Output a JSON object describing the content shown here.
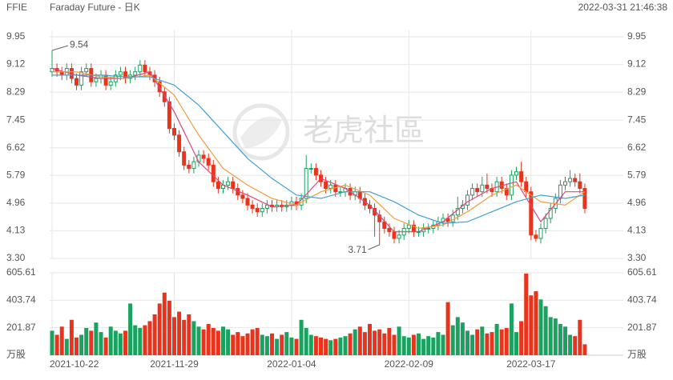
{
  "chart_data": {
    "type": "candlestick",
    "symbol": "FFIE",
    "title": "Faraday Future - 日K",
    "timestamp": "2022-03-31 21:46:38",
    "watermark": "老虎社區",
    "categories": [
      "2021-10-22",
      null,
      null,
      null,
      null,
      null,
      null,
      null,
      null,
      null,
      null,
      null,
      null,
      null,
      null,
      null,
      null,
      null,
      null,
      null,
      null,
      null,
      null,
      null,
      null,
      "2021-11-29",
      null,
      null,
      null,
      null,
      null,
      null,
      null,
      null,
      null,
      null,
      null,
      null,
      null,
      null,
      null,
      null,
      null,
      null,
      null,
      null,
      null,
      null,
      null,
      "2022-01-04",
      null,
      null,
      null,
      null,
      null,
      null,
      null,
      null,
      null,
      null,
      null,
      null,
      null,
      null,
      null,
      null,
      null,
      null,
      null,
      null,
      null,
      null,
      null,
      "2022-02-09",
      null,
      null,
      null,
      null,
      null,
      null,
      null,
      null,
      null,
      null,
      null,
      null,
      null,
      null,
      null,
      null,
      null,
      null,
      null,
      null,
      null,
      null,
      null,
      null,
      "2022-03-17",
      null,
      null,
      null,
      null,
      null,
      null,
      null,
      null,
      null,
      null,
      null
    ],
    "open": [
      8.9,
      9.0,
      8.9,
      8.8,
      9.0,
      8.7,
      8.5,
      8.9,
      9.0,
      8.6,
      8.7,
      8.8,
      8.5,
      8.6,
      8.8,
      8.9,
      8.7,
      8.8,
      8.9,
      9.1,
      8.9,
      8.8,
      8.6,
      8.3,
      8.0,
      7.2,
      7.0,
      6.5,
      6.1,
      6.0,
      6.2,
      6.4,
      6.3,
      6.1,
      5.6,
      5.4,
      5.5,
      5.6,
      5.4,
      5.2,
      5.1,
      4.9,
      4.8,
      4.7,
      4.8,
      4.9,
      4.85,
      4.9,
      4.85,
      4.9,
      5.0,
      4.9,
      5.1,
      6.0,
      6.0,
      5.8,
      5.6,
      5.4,
      5.5,
      5.3,
      5.3,
      5.4,
      5.2,
      5.3,
      5.1,
      4.9,
      4.8,
      4.6,
      4.4,
      4.2,
      4.1,
      3.9,
      4.0,
      4.2,
      4.3,
      4.1,
      4.1,
      4.2,
      4.2,
      4.3,
      4.4,
      4.5,
      4.4,
      4.6,
      4.8,
      4.9,
      5.2,
      5.4,
      5.3,
      5.5,
      5.4,
      5.3,
      5.6,
      5.4,
      5.2,
      5.8,
      5.9,
      5.6,
      5.3,
      4.0,
      3.9,
      4.2,
      4.5,
      4.8,
      5.1,
      5.5,
      5.6,
      5.7,
      5.6,
      5.4
    ],
    "high": [
      9.54,
      9.15,
      9.05,
      9.15,
      9.15,
      8.85,
      9.05,
      9.15,
      9.15,
      8.85,
      8.95,
      8.95,
      8.75,
      8.95,
      9.05,
      9.05,
      8.95,
      9.05,
      9.25,
      9.25,
      9.05,
      8.95,
      8.75,
      8.45,
      8.15,
      7.35,
      7.15,
      6.65,
      6.25,
      6.35,
      6.55,
      6.55,
      6.45,
      6.25,
      5.75,
      5.65,
      5.75,
      5.75,
      5.55,
      5.35,
      5.25,
      5.05,
      4.95,
      4.95,
      5.05,
      5.05,
      5.05,
      5.05,
      5.05,
      5.15,
      5.15,
      5.25,
      6.4,
      6.15,
      6.15,
      5.95,
      5.75,
      5.65,
      5.65,
      5.45,
      5.55,
      5.55,
      5.45,
      5.45,
      5.25,
      5.05,
      4.95,
      4.75,
      4.55,
      4.35,
      4.25,
      4.15,
      4.35,
      4.45,
      4.45,
      4.25,
      4.35,
      4.35,
      4.45,
      4.55,
      4.65,
      4.65,
      4.75,
      5.15,
      5.05,
      5.35,
      5.55,
      5.55,
      5.75,
      5.85,
      5.55,
      5.75,
      5.75,
      5.55,
      5.95,
      6.05,
      6.2,
      5.75,
      5.45,
      4.15,
      4.35,
      4.65,
      4.95,
      5.25,
      5.65,
      5.75,
      5.95,
      5.85,
      5.85,
      5.55
    ],
    "low": [
      8.75,
      8.75,
      8.65,
      8.65,
      8.55,
      8.35,
      8.35,
      8.75,
      8.45,
      8.45,
      8.55,
      8.35,
      8.35,
      8.45,
      8.65,
      8.55,
      8.55,
      8.65,
      8.75,
      8.75,
      8.65,
      8.45,
      8.15,
      7.85,
      7.05,
      6.85,
      6.35,
      5.95,
      5.85,
      5.85,
      6.05,
      6.15,
      5.95,
      5.45,
      5.25,
      5.25,
      5.35,
      5.25,
      5.05,
      4.95,
      4.75,
      4.65,
      4.55,
      4.55,
      4.65,
      4.7,
      4.7,
      4.7,
      4.7,
      4.75,
      4.75,
      4.75,
      4.95,
      5.85,
      5.65,
      5.45,
      5.25,
      5.25,
      5.15,
      5.15,
      5.15,
      5.05,
      5.05,
      4.95,
      4.75,
      4.65,
      3.95,
      3.71,
      4.05,
      3.95,
      3.75,
      3.75,
      3.85,
      4.05,
      3.95,
      3.95,
      3.95,
      4.05,
      4.05,
      4.15,
      4.25,
      4.25,
      4.25,
      4.45,
      4.65,
      4.75,
      5.05,
      5.15,
      5.15,
      5.25,
      5.15,
      5.15,
      5.25,
      5.05,
      5.05,
      5.65,
      5.45,
      5.15,
      3.85,
      3.8,
      3.75,
      4.05,
      4.35,
      4.65,
      4.95,
      5.35,
      5.45,
      5.45,
      5.25,
      4.65
    ],
    "close": [
      9.0,
      8.9,
      8.8,
      9.0,
      8.7,
      8.5,
      8.9,
      9.0,
      8.6,
      8.7,
      8.8,
      8.5,
      8.6,
      8.8,
      8.9,
      8.7,
      8.8,
      8.9,
      9.1,
      8.9,
      8.8,
      8.6,
      8.3,
      8.0,
      7.2,
      7.0,
      6.5,
      6.1,
      6.0,
      6.2,
      6.4,
      6.3,
      6.1,
      5.6,
      5.4,
      5.5,
      5.6,
      5.4,
      5.2,
      5.1,
      4.9,
      4.8,
      4.7,
      4.8,
      4.9,
      4.85,
      4.9,
      4.85,
      4.9,
      5.0,
      4.9,
      5.1,
      6.0,
      6.0,
      5.8,
      5.6,
      5.4,
      5.5,
      5.3,
      5.3,
      5.4,
      5.2,
      5.3,
      5.1,
      4.9,
      4.8,
      4.6,
      4.4,
      4.2,
      4.1,
      3.9,
      4.0,
      4.2,
      4.3,
      4.1,
      4.1,
      4.2,
      4.2,
      4.3,
      4.4,
      4.5,
      4.4,
      4.6,
      4.8,
      4.9,
      5.2,
      5.4,
      5.3,
      5.5,
      5.4,
      5.3,
      5.6,
      5.4,
      5.2,
      5.8,
      5.9,
      5.6,
      5.3,
      4.0,
      3.9,
      4.2,
      4.5,
      4.8,
      5.1,
      5.5,
      5.6,
      5.7,
      5.6,
      5.4,
      4.8
    ],
    "up_color": "#1aa260",
    "down_color": "#e8341c",
    "ylim": [
      3.3,
      9.95
    ],
    "yticks": [
      {
        "value": 3.3,
        "label": "3.30"
      },
      4.13,
      4.96,
      5.79,
      6.62,
      7.45,
      8.29,
      9.12,
      9.95
    ],
    "grid": true,
    "ma_lines": [
      {
        "color": "#e0457b",
        "x": [
          0,
          5,
          10,
          15,
          20,
          25,
          30,
          35,
          40,
          45,
          50,
          55,
          60,
          65,
          70,
          75,
          80,
          85,
          90,
          95,
          100,
          105,
          109
        ],
        "values": [
          9.0,
          8.8,
          8.7,
          8.7,
          8.9,
          7.7,
          6.2,
          5.5,
          5.2,
          4.85,
          4.9,
          5.7,
          5.4,
          4.9,
          4.1,
          4.1,
          4.4,
          5.0,
          5.4,
          5.6,
          4.4,
          5.3,
          5.3
        ]
      },
      {
        "color": "#f39c3c",
        "x": [
          0,
          5,
          10,
          15,
          20,
          25,
          30,
          35,
          40,
          45,
          50,
          55,
          60,
          65,
          70,
          75,
          80,
          85,
          90,
          95,
          100,
          105,
          109
        ],
        "values": [
          8.9,
          8.9,
          8.75,
          8.7,
          8.8,
          8.2,
          7.0,
          6.0,
          5.5,
          5.1,
          4.9,
          5.3,
          5.5,
          5.2,
          4.5,
          4.2,
          4.3,
          4.7,
          5.2,
          5.5,
          5.0,
          4.9,
          5.3
        ]
      },
      {
        "color": "#3fa0d8",
        "x": [
          0,
          5,
          10,
          15,
          20,
          25,
          30,
          35,
          40,
          45,
          50,
          55,
          60,
          65,
          70,
          75,
          80,
          85,
          90,
          95,
          100,
          105,
          109
        ],
        "values": [
          8.8,
          8.8,
          8.8,
          8.75,
          8.75,
          8.5,
          7.9,
          7.1,
          6.3,
          5.7,
          5.2,
          5.1,
          5.3,
          5.3,
          5.0,
          4.6,
          4.35,
          4.4,
          4.7,
          5.0,
          5.2,
          5.1,
          5.2
        ]
      }
    ],
    "volume": {
      "ylim": [
        0,
        605.61
      ],
      "yticks": [
        {
          "value": 0,
          "label": "万股"
        },
        201.87,
        403.74,
        605.61
      ],
      "values": [
        180,
        150,
        210,
        120,
        260,
        130,
        150,
        200,
        180,
        240,
        170,
        130,
        210,
        180,
        160,
        180,
        380,
        220,
        200,
        220,
        250,
        300,
        380,
        460,
        400,
        280,
        320,
        260,
        300,
        250,
        210,
        190,
        230,
        200,
        180,
        210,
        190,
        150,
        170,
        140,
        160,
        190,
        200,
        150,
        140,
        160,
        120,
        150,
        170,
        130,
        120,
        260,
        200,
        150,
        140,
        130,
        120,
        110,
        120,
        130,
        140,
        160,
        190,
        210,
        170,
        230,
        180,
        190,
        160,
        200,
        150,
        210,
        140,
        130,
        150,
        160,
        120,
        140,
        130,
        170,
        150,
        390,
        220,
        280,
        240,
        180,
        150,
        190,
        210,
        160,
        170,
        230,
        190,
        200,
        380,
        170,
        250,
        600,
        440,
        470,
        410,
        360,
        280,
        270,
        230,
        210,
        150,
        140,
        260,
        80
      ]
    }
  }
}
